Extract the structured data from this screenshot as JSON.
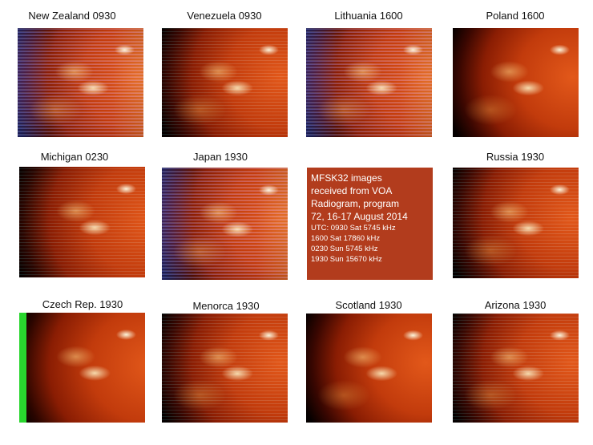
{
  "panels": [
    {
      "caption": "New Zealand 0930"
    },
    {
      "caption": "Venezuela 0930"
    },
    {
      "caption": "Lithuania 1600"
    },
    {
      "caption": "Poland 1600"
    },
    {
      "caption": "Michigan 0230"
    },
    {
      "caption": "Japan 1930"
    },
    {
      "caption": "Russia 1930"
    },
    {
      "caption": "Czech Rep. 1930"
    },
    {
      "caption": "Menorca 1930"
    },
    {
      "caption": "Scotland 1930"
    },
    {
      "caption": "Arizona 1930"
    }
  ],
  "info": {
    "line1": "MFSK32 images",
    "line2": "received from VOA",
    "line3": "Radiogram, program",
    "line4": "72, 16-17 August 2014",
    "utc1": "UTC: 0930 Sat 5745 kHz",
    "utc2": "1600 Sat 17860 kHz",
    "utc3": "0230 Sun 5745 kHz",
    "utc4": "1930 Sun 15670 kHz",
    "background": "#b23c1d"
  }
}
